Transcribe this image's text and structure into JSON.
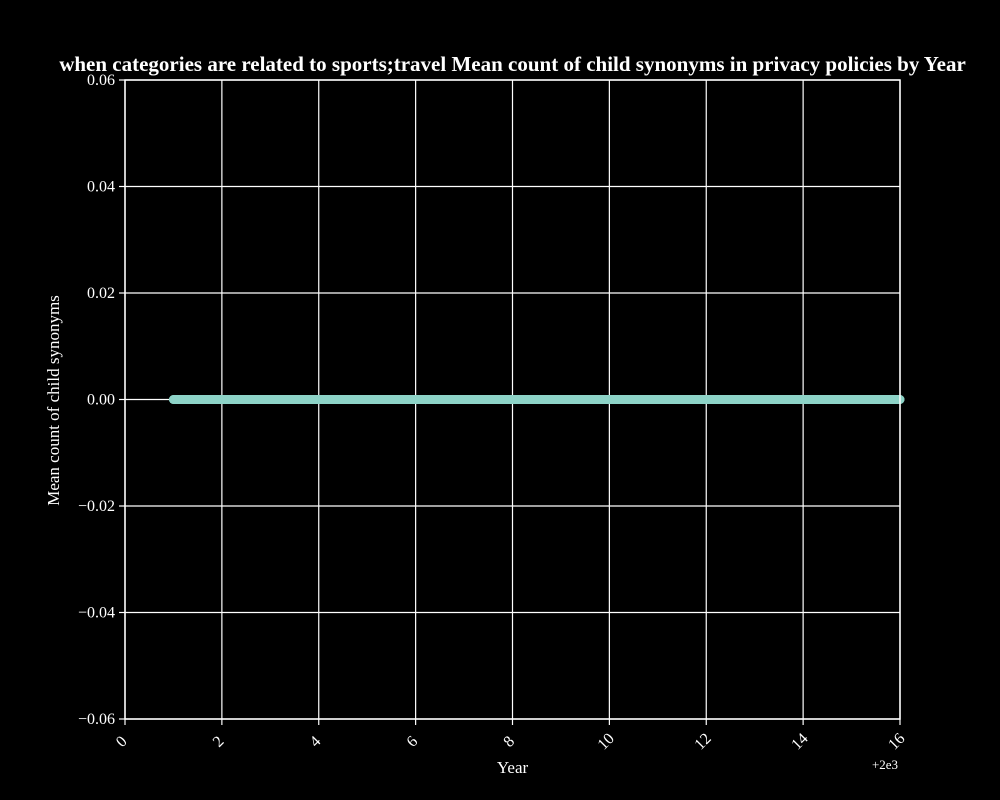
{
  "chart_data": {
    "type": "line",
    "title": "when categories are related to sports;travel Mean count of child synonyms in privacy policies by Year",
    "xlabel": "Year",
    "ylabel": "Mean count of child synonyms",
    "x_offset_label": "+2e3",
    "xlim": [
      0,
      16
    ],
    "ylim": [
      -0.06,
      0.06
    ],
    "x_ticks": [
      0,
      2,
      4,
      6,
      8,
      10,
      12,
      14,
      16
    ],
    "x_tick_labels": [
      "0",
      "2",
      "4",
      "6",
      "8",
      "10",
      "12",
      "14",
      "16"
    ],
    "y_ticks": [
      -0.06,
      -0.04,
      -0.02,
      0.0,
      0.02,
      0.04,
      0.06
    ],
    "y_tick_labels": [
      "−0.06",
      "−0.04",
      "−0.02",
      "0.00",
      "0.02",
      "0.04",
      "0.06"
    ],
    "grid": true,
    "series": [
      {
        "x": [
          1,
          2,
          3,
          4,
          5,
          6,
          7,
          8,
          9,
          10,
          11,
          12,
          13,
          14,
          15,
          16
        ],
        "y": [
          0,
          0,
          0,
          0,
          0,
          0,
          0,
          0,
          0,
          0,
          0,
          0,
          0,
          0,
          0,
          0
        ],
        "color": "#8dd3c7"
      }
    ],
    "colors": {
      "background": "#000000",
      "grid": "#ffffff",
      "text": "#ffffff"
    }
  }
}
